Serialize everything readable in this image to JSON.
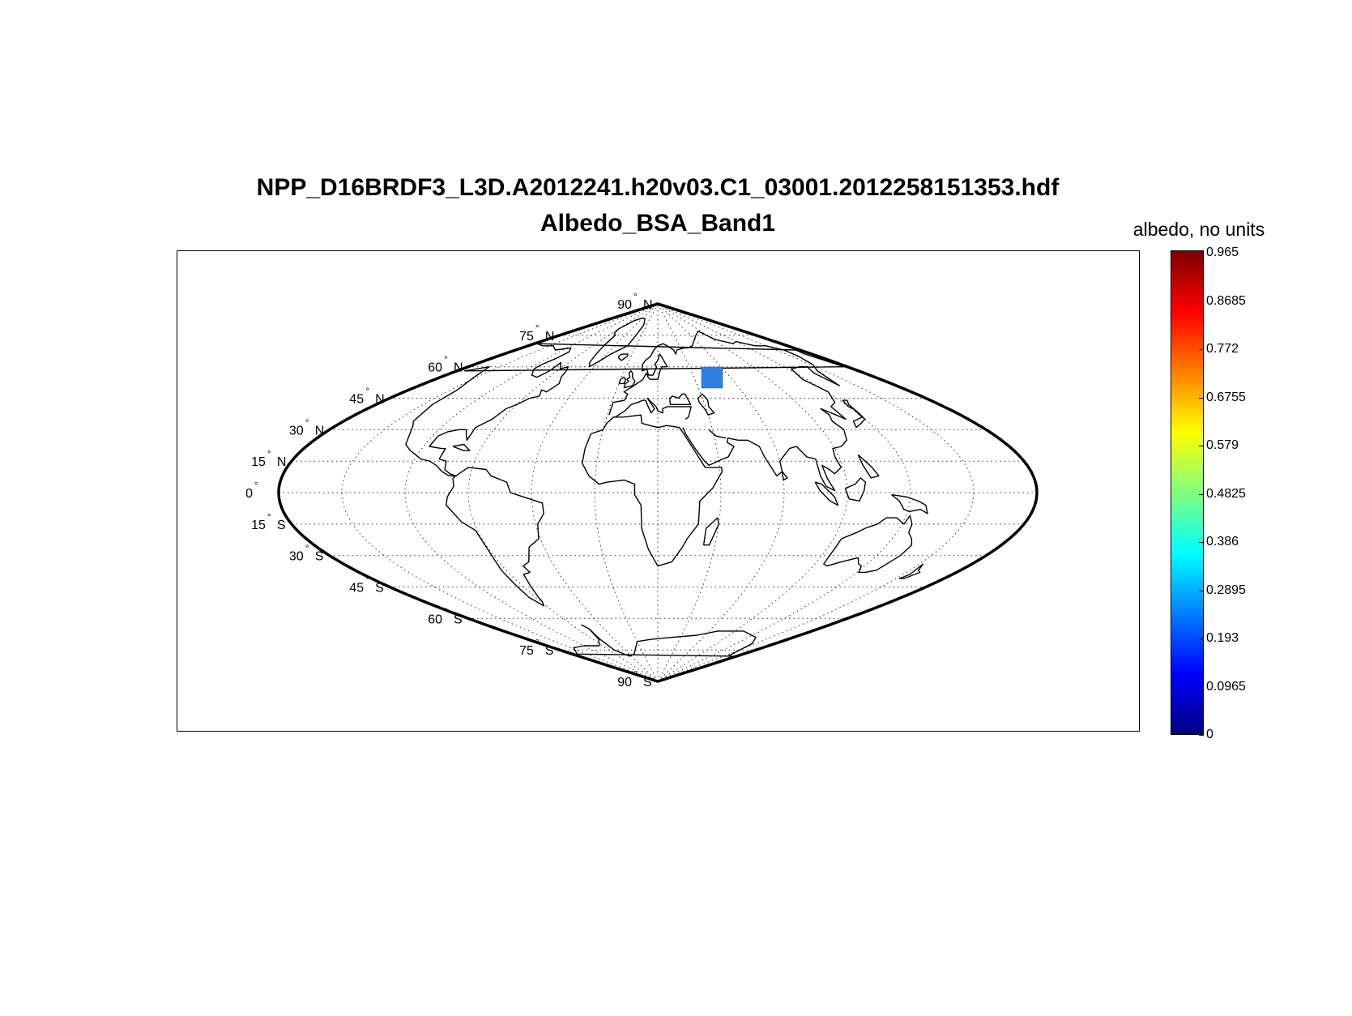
{
  "title": {
    "line1": "NPP_D16BRDF3_L3D.A2012241.h20v03.C1_03001.2012258151353.hdf",
    "line2": "Albedo_BSA_Band1"
  },
  "colorbar": {
    "label": "albedo, no units",
    "min": 0,
    "max": 0.965,
    "ticks": [
      "0.965",
      "0.8685",
      "0.772",
      "0.6755",
      "0.579",
      "0.4825",
      "0.386",
      "0.2895",
      "0.193",
      "0.0965",
      "0"
    ],
    "colormap": "jet"
  },
  "map": {
    "projection": "sinusoidal",
    "central_meridian": 20,
    "graticule_interval_deg": 15,
    "grid": "dotted",
    "tile": {
      "name": "h20v03",
      "lon_range": [
        15,
        40
      ],
      "lat_range": [
        50,
        60
      ],
      "albedo_value_approx": 0.22,
      "color": "#2f7fe0"
    },
    "latitude_labels": [
      {
        "deg": "90",
        "hemi": "N",
        "lat": 90
      },
      {
        "deg": "75",
        "hemi": "N",
        "lat": 75
      },
      {
        "deg": "60",
        "hemi": "N",
        "lat": 60
      },
      {
        "deg": "45",
        "hemi": "N",
        "lat": 45
      },
      {
        "deg": "30",
        "hemi": "N",
        "lat": 30
      },
      {
        "deg": "15",
        "hemi": "N",
        "lat": 15
      },
      {
        "deg": "0",
        "hemi": "",
        "lat": 0
      },
      {
        "deg": "15",
        "hemi": "S",
        "lat": -15
      },
      {
        "deg": "30",
        "hemi": "S",
        "lat": -30
      },
      {
        "deg": "45",
        "hemi": "S",
        "lat": -45
      },
      {
        "deg": "60",
        "hemi": "S",
        "lat": -60
      },
      {
        "deg": "75",
        "hemi": "S",
        "lat": -75
      },
      {
        "deg": "90",
        "hemi": "S",
        "lat": -90
      }
    ]
  }
}
